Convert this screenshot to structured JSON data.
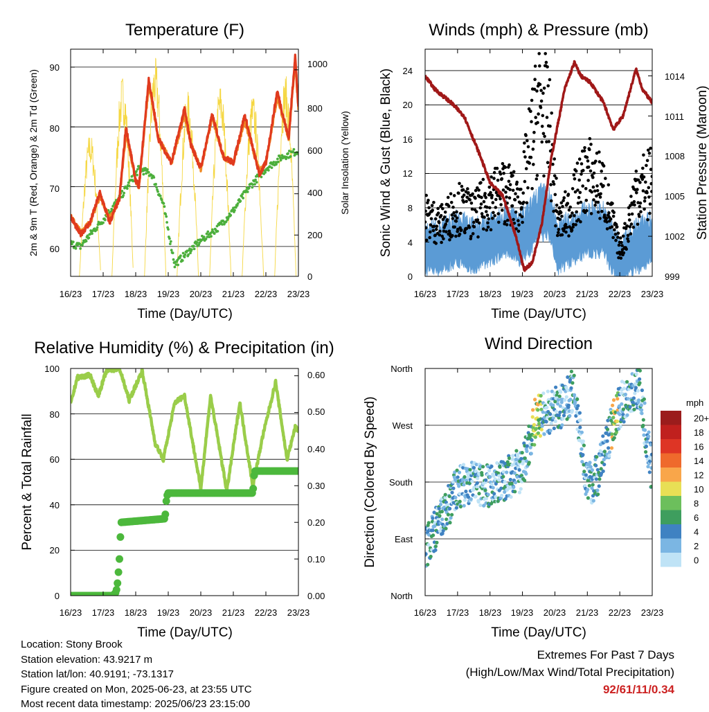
{
  "colors": {
    "temp2m": "#e03a1e",
    "temp9m": "#f08a24",
    "dewpoint": "#4caf3c",
    "solar": "#f5d742",
    "wind": "#5b9bd5",
    "gust": "#000000",
    "pressure": "#a01818",
    "rh": "#9acd4a",
    "precip": "#4cb83c",
    "extremes": "#cc2222"
  },
  "time_axis": {
    "ticks": [
      "16/23",
      "17/23",
      "18/23",
      "19/23",
      "20/23",
      "21/23",
      "22/23",
      "23/23"
    ],
    "label": "Time (Day/UTC)"
  },
  "charts": {
    "temperature": {
      "title": "Temperature (F)",
      "ylabel_left": "2m & 9m T (Red, Orange) & 2m Td (Green)",
      "ylabel_right": "Solar Insolation (Yellow)",
      "yticks_left": [
        "60",
        "70",
        "80",
        "90"
      ],
      "yticks_right": [
        "0",
        "200",
        "400",
        "600",
        "800",
        "1000"
      ]
    },
    "winds": {
      "title": "Winds (mph) & Pressure (mb)",
      "ylabel_left": "Sonic Wind & Gust (Blue, Black)",
      "ylabel_right": "Station Pressure (Maroon)",
      "yticks_left": [
        "0",
        "4",
        "8",
        "12",
        "16",
        "20",
        "24"
      ],
      "yticks_right": [
        "999",
        "1002",
        "1005",
        "1008",
        "1011",
        "1014"
      ]
    },
    "humidity": {
      "title": "Relative Humidity (%) & Precipitation (in)",
      "ylabel_left": "Percent & Total Rainfall",
      "yticks_left": [
        "0",
        "20",
        "40",
        "60",
        "80",
        "100"
      ],
      "yticks_right": [
        "0.00",
        "0.10",
        "0.20",
        "0.30",
        "0.40",
        "0.50",
        "0.60"
      ]
    },
    "direction": {
      "title": "Wind Direction",
      "ylabel_left": "Direction (Colored By Speed)",
      "yticks_left": [
        "North",
        "East",
        "South",
        "West",
        "North"
      ],
      "legend_title": "mph",
      "legend_labels": [
        "20+",
        "18",
        "16",
        "14",
        "12",
        "10",
        "8",
        "6",
        "4",
        "2",
        "0"
      ],
      "legend_colors": [
        "#9b1c1c",
        "#c0201e",
        "#de3525",
        "#ef6a2c",
        "#f9a64a",
        "#e8df55",
        "#6cbf5c",
        "#3e9e5e",
        "#3f82c2",
        "#7bb6e3",
        "#bfe3f6"
      ]
    }
  },
  "chart_data": [
    {
      "type": "line",
      "title": "Temperature (F)",
      "x": [
        "16/23",
        "17/23",
        "18/23",
        "19/23",
        "20/23",
        "21/23",
        "22/23",
        "23/23"
      ],
      "ylim": [
        55,
        93
      ],
      "y2lim": [
        0,
        1100
      ],
      "series": [
        {
          "name": "2m T",
          "axis": "left",
          "t": [
            0,
            0.3,
            0.6,
            0.9,
            1.2,
            1.5,
            1.7,
            2.0,
            2.1,
            2.4,
            2.7,
            3.1,
            3.5,
            3.7,
            4.0,
            4.35,
            4.7,
            5.0,
            5.35,
            5.8,
            6.0,
            6.35,
            6.7,
            6.9,
            7.0
          ],
          "v": [
            65,
            62,
            64,
            69,
            64,
            68,
            80,
            71,
            70,
            88,
            78,
            74,
            83,
            77,
            73,
            82,
            75,
            74,
            82,
            72,
            74,
            86,
            78,
            92,
            83
          ]
        },
        {
          "name": "9m T",
          "axis": "left",
          "t": [
            0,
            0.3,
            0.6,
            0.9,
            1.2,
            1.5,
            1.7,
            2.0,
            2.1,
            2.4,
            2.7,
            3.1,
            3.5,
            3.7,
            4.0,
            4.35,
            4.7,
            5.0,
            5.35,
            5.8,
            6.0,
            6.35,
            6.7,
            6.9,
            7.0
          ],
          "v": [
            65,
            62.5,
            64,
            68.5,
            64.5,
            68,
            79,
            71,
            70,
            87,
            78,
            74,
            82,
            77,
            73,
            81.5,
            75,
            74,
            81,
            72.5,
            74,
            85,
            78,
            91,
            83
          ]
        },
        {
          "name": "2m Td",
          "axis": "left",
          "t": [
            0,
            0.3,
            0.6,
            1.0,
            1.5,
            2.1,
            2.5,
            2.85,
            3.2,
            3.6,
            4.0,
            4.5,
            5.0,
            5.5,
            6.0,
            6.5,
            7.0
          ],
          "v": [
            60.5,
            60,
            62,
            64.5,
            68,
            73,
            72,
            67,
            57,
            59,
            61,
            63,
            66,
            70,
            73,
            75,
            76
          ]
        },
        {
          "name": "Solar Insolation",
          "axis": "right",
          "days": [
            0.6,
            1.6,
            2.6,
            3.6,
            4.6,
            5.6,
            6.6
          ],
          "peaks": [
            700,
            980,
            1060,
            900,
            940,
            890,
            980
          ]
        }
      ]
    },
    {
      "type": "line",
      "title": "Winds (mph) & Pressure (mb)",
      "x": [
        "16/23",
        "17/23",
        "18/23",
        "19/23",
        "20/23",
        "21/23",
        "22/23",
        "23/23"
      ],
      "ylim": [
        0,
        26.5
      ],
      "y2lim": [
        999,
        1016
      ],
      "series": [
        {
          "name": "Sonic Wind",
          "axis": "left",
          "t": [
            0,
            0.5,
            1.0,
            1.5,
            2.0,
            2.5,
            2.9,
            3.2,
            3.5,
            3.8,
            4.1,
            4.5,
            5.0,
            5.5,
            6.0,
            6.2,
            6.5,
            7.0
          ],
          "v": [
            3,
            3,
            4,
            3,
            4,
            5,
            4,
            5,
            7,
            7,
            3,
            4,
            5,
            5,
            1,
            2,
            3,
            4
          ]
        },
        {
          "name": "Gust",
          "axis": "left",
          "t": [
            0,
            0.5,
            1.0,
            1.5,
            2.0,
            2.5,
            2.9,
            3.2,
            3.5,
            3.8,
            4.1,
            4.5,
            5.0,
            5.5,
            6.0,
            6.2,
            6.5,
            7.0
          ],
          "v": [
            7,
            6,
            8,
            7,
            9,
            10,
            8,
            14,
            20,
            18,
            6,
            8,
            12,
            10,
            3,
            5,
            10,
            11
          ]
        },
        {
          "name": "Station Pressure",
          "axis": "right",
          "t": [
            0,
            0.3,
            0.8,
            1.2,
            1.7,
            2.0,
            2.4,
            2.8,
            3.05,
            3.3,
            3.6,
            3.9,
            4.3,
            4.6,
            4.8,
            5.1,
            5.5,
            5.8,
            6.1,
            6.5,
            6.7,
            7.0
          ],
          "v": [
            1014,
            1013,
            1012,
            1011,
            1008,
            1006,
            1005,
            1002,
            999.5,
            1000,
            1003,
            1008,
            1013,
            1015,
            1014,
            1013.5,
            1012,
            1010,
            1011,
            1014.5,
            1013,
            1012
          ]
        }
      ]
    },
    {
      "type": "line",
      "title": "Relative Humidity (%) & Precipitation (in)",
      "x": [
        "16/23",
        "17/23",
        "18/23",
        "19/23",
        "20/23",
        "21/23",
        "22/23",
        "23/23"
      ],
      "ylim": [
        0,
        100
      ],
      "y2lim": [
        0,
        0.62
      ],
      "series": [
        {
          "name": "Relative Humidity",
          "axis": "left",
          "t": [
            0,
            0.2,
            0.6,
            0.85,
            1.1,
            1.5,
            1.8,
            2.2,
            2.6,
            2.85,
            3.2,
            3.5,
            4.0,
            4.3,
            4.8,
            5.2,
            5.6,
            5.9,
            6.3,
            6.65,
            6.9,
            7.0
          ],
          "v": [
            84,
            96,
            97,
            88,
            99,
            100,
            86,
            99,
            67,
            60,
            85,
            88,
            47,
            88,
            46,
            85,
            48,
            70,
            94,
            60,
            74,
            73
          ]
        },
        {
          "name": "Total Precipitation",
          "axis": "right",
          "t": [
            0,
            1.3,
            1.4,
            1.45,
            1.5,
            1.55,
            2.9,
            2.95,
            3.0,
            5.6,
            5.65,
            7.0
          ],
          "v": [
            0,
            0,
            0.01,
            0.04,
            0.1,
            0.2,
            0.21,
            0.27,
            0.28,
            0.28,
            0.34,
            0.34
          ]
        }
      ]
    },
    {
      "type": "scatter",
      "title": "Wind Direction",
      "x": [
        "16/23",
        "17/23",
        "18/23",
        "19/23",
        "20/23",
        "21/23",
        "22/23",
        "23/23"
      ],
      "ylim": [
        0,
        360
      ],
      "series": [
        {
          "name": "Direction",
          "t": [
            0,
            0.5,
            1.0,
            1.5,
            2.0,
            2.5,
            3.0,
            3.4,
            3.8,
            4.2,
            4.6,
            5.0,
            5.3,
            5.7,
            6.0,
            6.3,
            6.6,
            7.0
          ],
          "v": [
            75,
            120,
            170,
            180,
            175,
            185,
            200,
            280,
            290,
            300,
            330,
            175,
            190,
            260,
            300,
            320,
            330,
            190
          ]
        }
      ]
    }
  ],
  "info": {
    "location": "Location: Stony Brook",
    "elevation": "Station elevation: 43.9217 m",
    "latlon": "Station lat/lon: 40.9191; -73.1317",
    "created": "Figure created on Mon, 2025-06-23, at 23:55 UTC",
    "recent": "Most recent data timestamp: 2025/06/23 23:15:00"
  },
  "extremes": {
    "line1": "Extremes For Past 7 Days",
    "line2": "(High/Low/Max Wind/Total Precipitation)",
    "values": "92/61/11/0.34"
  }
}
